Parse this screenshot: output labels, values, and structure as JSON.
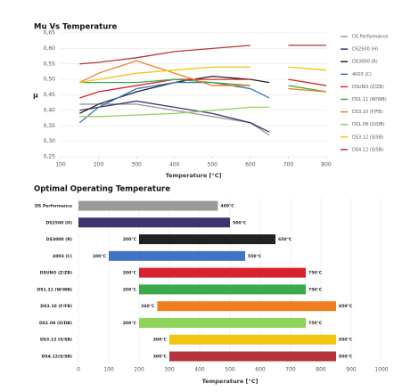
{
  "chart_data": [
    {
      "type": "line",
      "title": "Mu Vs Temperature",
      "x_label": "Temperature [°C]",
      "y_label": "μ",
      "x": [
        150,
        200,
        300,
        400,
        500,
        600,
        650,
        700,
        800
      ],
      "xlim": [
        100,
        800
      ],
      "xticks": [
        100,
        200,
        300,
        400,
        500,
        600,
        700,
        800
      ],
      "ylim": [
        0.25,
        0.65
      ],
      "yticks": [
        {
          "value": 0.25,
          "label": "0,25"
        },
        {
          "value": 0.3,
          "label": "0,30"
        },
        {
          "value": 0.35,
          "label": "0,35"
        },
        {
          "value": 0.4,
          "label": "0,40"
        },
        {
          "value": 0.45,
          "label": "0,45"
        },
        {
          "value": 0.5,
          "label": "0,50"
        },
        {
          "value": 0.55,
          "label": "0,55"
        },
        {
          "value": 0.6,
          "label": "0,60"
        },
        {
          "value": 0.65,
          "label": "0,65"
        }
      ],
      "grid": true,
      "legend": "right",
      "series": [
        {
          "name": "DS Performance",
          "color": "#9a9a9a",
          "values": [
            0.42,
            0.42,
            0.42,
            0.4,
            0.38,
            0.36,
            0.32,
            null,
            null
          ]
        },
        {
          "name": "DS2500 (H)",
          "color": "#3b3470",
          "values": [
            0.4,
            0.41,
            0.43,
            0.41,
            0.39,
            0.36,
            0.33,
            null,
            null
          ]
        },
        {
          "name": "DS3000 (R)",
          "color": "#222222",
          "values": [
            0.39,
            0.42,
            0.46,
            0.49,
            0.51,
            0.5,
            0.49,
            null,
            null
          ]
        },
        {
          "name": "4003 (C)",
          "color": "#3f74c4",
          "values": [
            0.36,
            0.41,
            0.47,
            0.49,
            0.49,
            0.47,
            0.44,
            null,
            null
          ]
        },
        {
          "name": "DSUNO (Z/ZB)",
          "color": "#d9232a",
          "values": [
            0.44,
            0.46,
            0.48,
            0.5,
            0.5,
            0.5,
            null,
            0.5,
            0.48
          ]
        },
        {
          "name": "DS1.11 (W/WB)",
          "color": "#3aaa4a",
          "values": [
            0.49,
            0.49,
            0.49,
            0.5,
            0.49,
            0.48,
            null,
            0.48,
            0.46
          ]
        },
        {
          "name": "DS3.10 (F/FB)",
          "color": "#f07f22",
          "values": [
            0.49,
            0.52,
            0.56,
            0.52,
            0.48,
            0.48,
            null,
            0.47,
            0.46
          ]
        },
        {
          "name": "DS1.08 (D/DB)",
          "color": "#8fd35a",
          "values": [
            0.38,
            0.38,
            0.385,
            0.39,
            0.4,
            0.41,
            0.41,
            null,
            null
          ]
        },
        {
          "name": "DS3.12 (S/SB)",
          "color": "#f2c511",
          "values": [
            0.49,
            0.5,
            0.52,
            0.53,
            0.54,
            0.54,
            null,
            0.54,
            0.53
          ]
        },
        {
          "name": "DS4.12 (S/SB)",
          "color": "#b8343c",
          "values": [
            0.55,
            0.555,
            0.57,
            0.59,
            0.6,
            0.61,
            null,
            0.61,
            0.61
          ]
        }
      ]
    },
    {
      "type": "floating_bar",
      "title": "Optimal Operating Temperature",
      "x_label": "Temperature [°C]",
      "categories": [
        "DS Performance",
        "DS2500 (H)",
        "DS3000 (R)",
        "4003 (C)",
        "DSUNO (Z/ZB)",
        "DS1.11 (W/WB)",
        "DS3.10 (F/FB)",
        "DS1.08 (D/DB)",
        "DS3.12 (S/SB)",
        "DS4.12(S/SB)"
      ],
      "starts": [
        0,
        0,
        200,
        100,
        200,
        200,
        260,
        200,
        300,
        300
      ],
      "ends": [
        460,
        500,
        650,
        550,
        750,
        750,
        850,
        750,
        850,
        850
      ],
      "start_labels": [
        null,
        null,
        "200°C",
        "100°C",
        "200°C",
        "200°C",
        "260°C",
        "200°C",
        "300°C",
        "300°C"
      ],
      "end_labels": [
        "460°C",
        "500°C",
        "650°C",
        "550°C",
        "750°C",
        "750°C",
        "850°C",
        "750°C",
        "850°C",
        "850°C"
      ],
      "colors": [
        "#9a9a9a",
        "#3b3470",
        "#222222",
        "#3f74c4",
        "#d9232a",
        "#3aaa4a",
        "#f07f22",
        "#8fd35a",
        "#f2c511",
        "#b8343c"
      ],
      "xlim": [
        0,
        1000
      ],
      "xticks": [
        0,
        100,
        200,
        300,
        400,
        500,
        600,
        700,
        800,
        900,
        1000
      ],
      "grid": true
    }
  ]
}
